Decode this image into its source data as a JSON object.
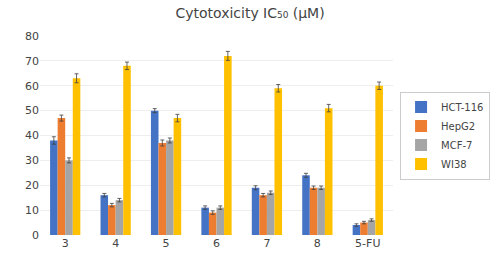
{
  "chart_data": {
    "type": "bar",
    "title": "Cytotoxicity IC₅₀ (μM)",
    "categories": [
      "3",
      "4",
      "5",
      "6",
      "7",
      "8",
      "5-FU"
    ],
    "series": [
      {
        "name": "HCT-116",
        "color": "#4472C4",
        "values": [
          38,
          16,
          50,
          11,
          19,
          24,
          4
        ],
        "errors": [
          1.5,
          0.7,
          0.8,
          0.7,
          0.8,
          0.8,
          0.5
        ]
      },
      {
        "name": "HepG2",
        "color": "#ED7D31",
        "values": [
          47,
          12,
          37,
          9,
          16,
          19,
          5
        ],
        "errors": [
          1.2,
          0.7,
          1.2,
          0.7,
          0.7,
          0.7,
          0.5
        ]
      },
      {
        "name": "MCF-7",
        "color": "#A5A5A5",
        "values": [
          30,
          14,
          38,
          11,
          17,
          19,
          6
        ],
        "errors": [
          1.0,
          0.7,
          1.0,
          0.7,
          0.7,
          0.7,
          0.5
        ]
      },
      {
        "name": "WI38",
        "color": "#FFC000",
        "values": [
          63,
          68,
          47,
          72,
          59,
          51,
          60
        ],
        "errors": [
          1.8,
          1.5,
          1.5,
          1.8,
          1.5,
          1.5,
          1.5
        ]
      }
    ],
    "ylim": [
      0,
      80
    ],
    "yticks": [
      0,
      10,
      20,
      30,
      40,
      50,
      60,
      70,
      80
    ],
    "grid": true,
    "legend": "right"
  }
}
